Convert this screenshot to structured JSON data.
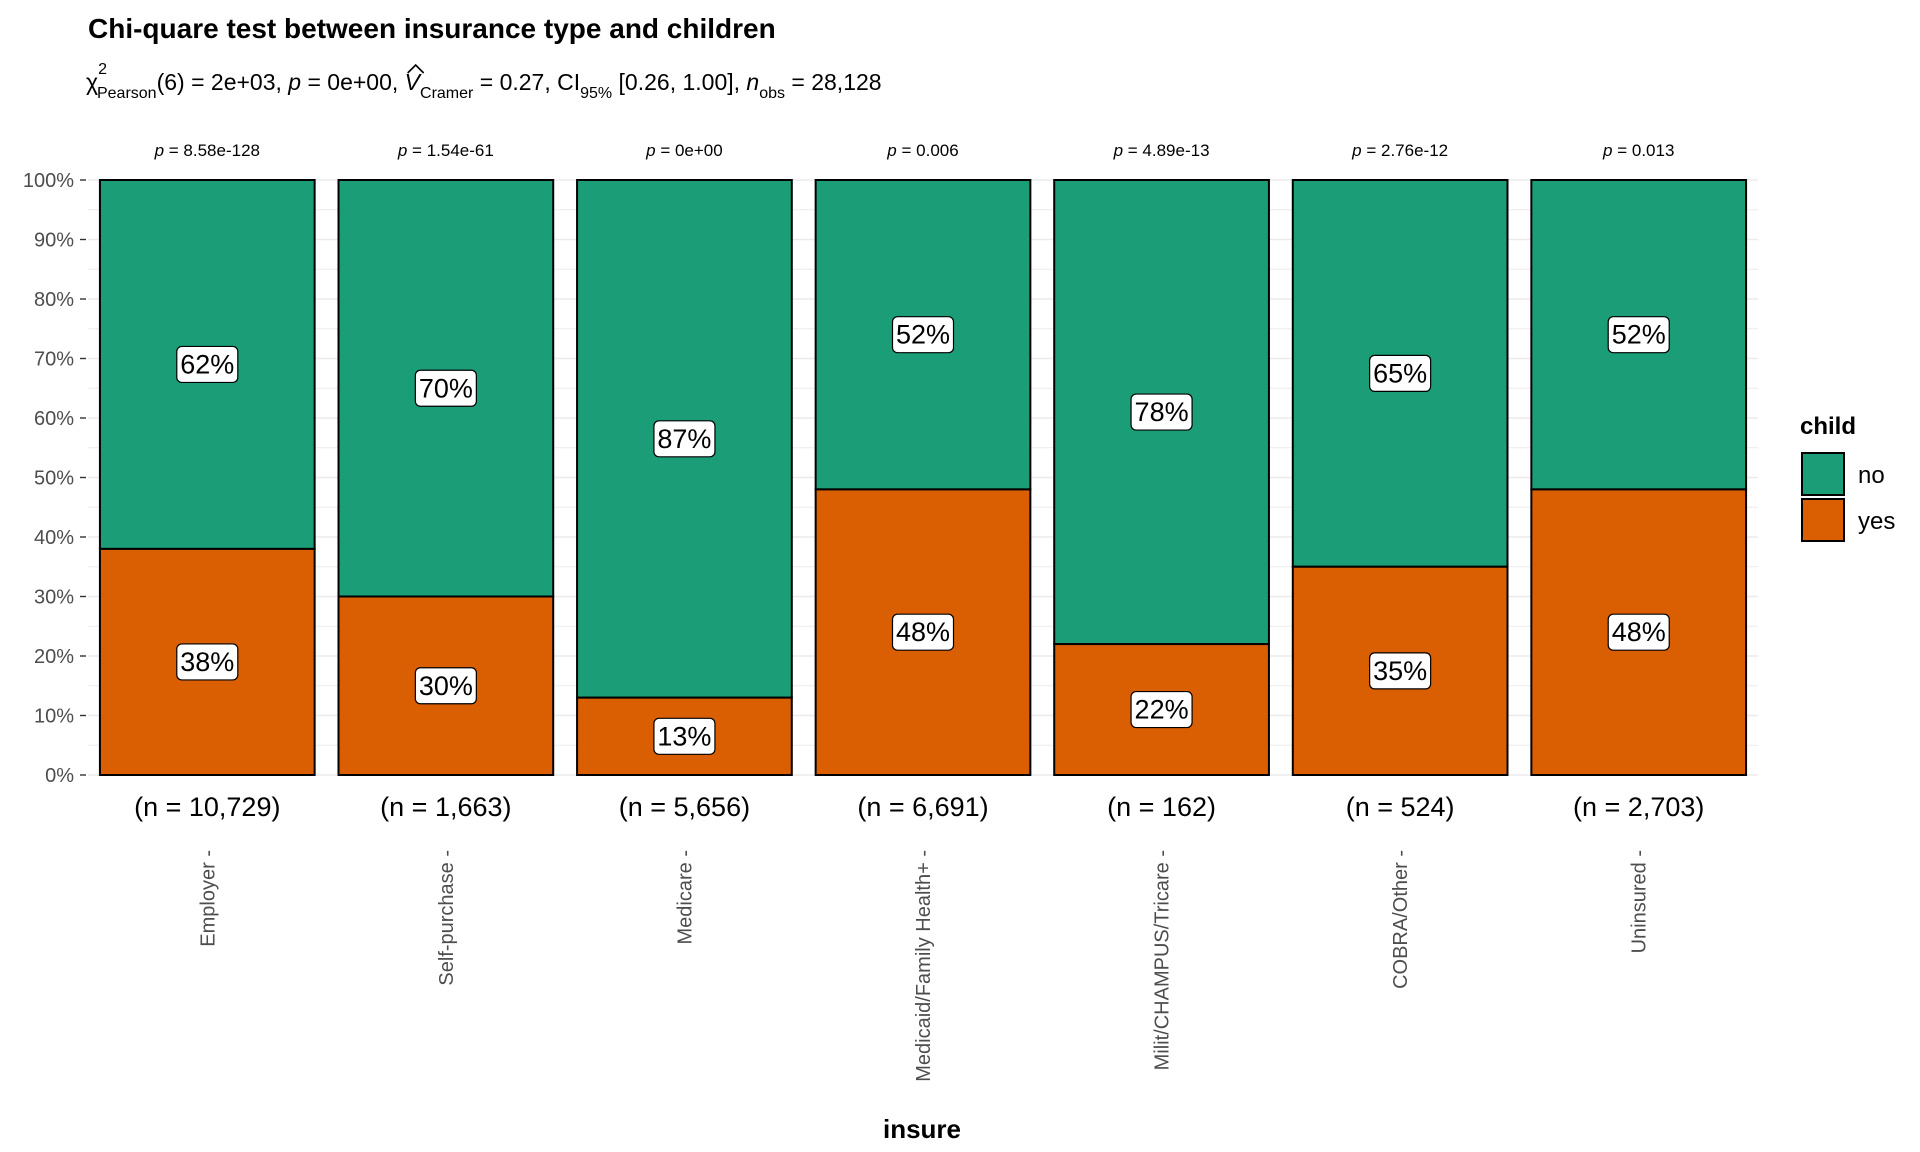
{
  "chart_data": {
    "type": "bar",
    "stacked": true,
    "percent": true,
    "title": "Chi-quare test between insurance type and children",
    "subtitle": {
      "chi_symbol": "χ",
      "chi_sup": "2",
      "chi_sub": "Pearson",
      "part1": "(6) = 2e+03, ",
      "p_sym": "p",
      "part2": " = 0e+00, ",
      "v_sym": "V",
      "v_sub": "Cramer",
      "part3": " = 0.27, CI",
      "ci_sub": "95%",
      "part4": " [0.26, 1.00], ",
      "n_sym": "n",
      "n_sub": "obs",
      "part5": " = 28,128"
    },
    "xlabel": "insure",
    "ylabel": "",
    "ylim": [
      0,
      100
    ],
    "yticks": [
      "0%",
      "10%",
      "20%",
      "30%",
      "40%",
      "50%",
      "60%",
      "70%",
      "80%",
      "90%",
      "100%"
    ],
    "categories": [
      "Employer",
      "Self-purchase",
      "Medicare",
      "Medicaid/Family Health+",
      "Milit/CHAMPUS/Tricare",
      "COBRA/Other",
      "Uninsured"
    ],
    "n_labels": [
      "(n = 10,729)",
      "(n = 1,663)",
      "(n = 5,656)",
      "(n = 6,691)",
      "(n = 162)",
      "(n = 524)",
      "(n = 2,703)"
    ],
    "p_values": [
      "8.58e-128",
      "1.54e-61",
      "0e+00",
      "0.006",
      "4.89e-13",
      "2.76e-12",
      "0.013"
    ],
    "p_prefix": "p",
    "p_eq": " = ",
    "series": [
      {
        "name": "no",
        "color": "#1B9E77",
        "values": [
          62,
          70,
          87,
          52,
          78,
          65,
          52
        ],
        "labels": [
          "62%",
          "70%",
          "87%",
          "52%",
          "78%",
          "65%",
          "52%"
        ]
      },
      {
        "name": "yes",
        "color": "#D95F02",
        "values": [
          38,
          30,
          13,
          48,
          22,
          35,
          48
        ],
        "labels": [
          "38%",
          "30%",
          "13%",
          "48%",
          "22%",
          "35%",
          "48%"
        ]
      }
    ],
    "legend": {
      "title": "child",
      "position": "right"
    },
    "grid": true
  }
}
